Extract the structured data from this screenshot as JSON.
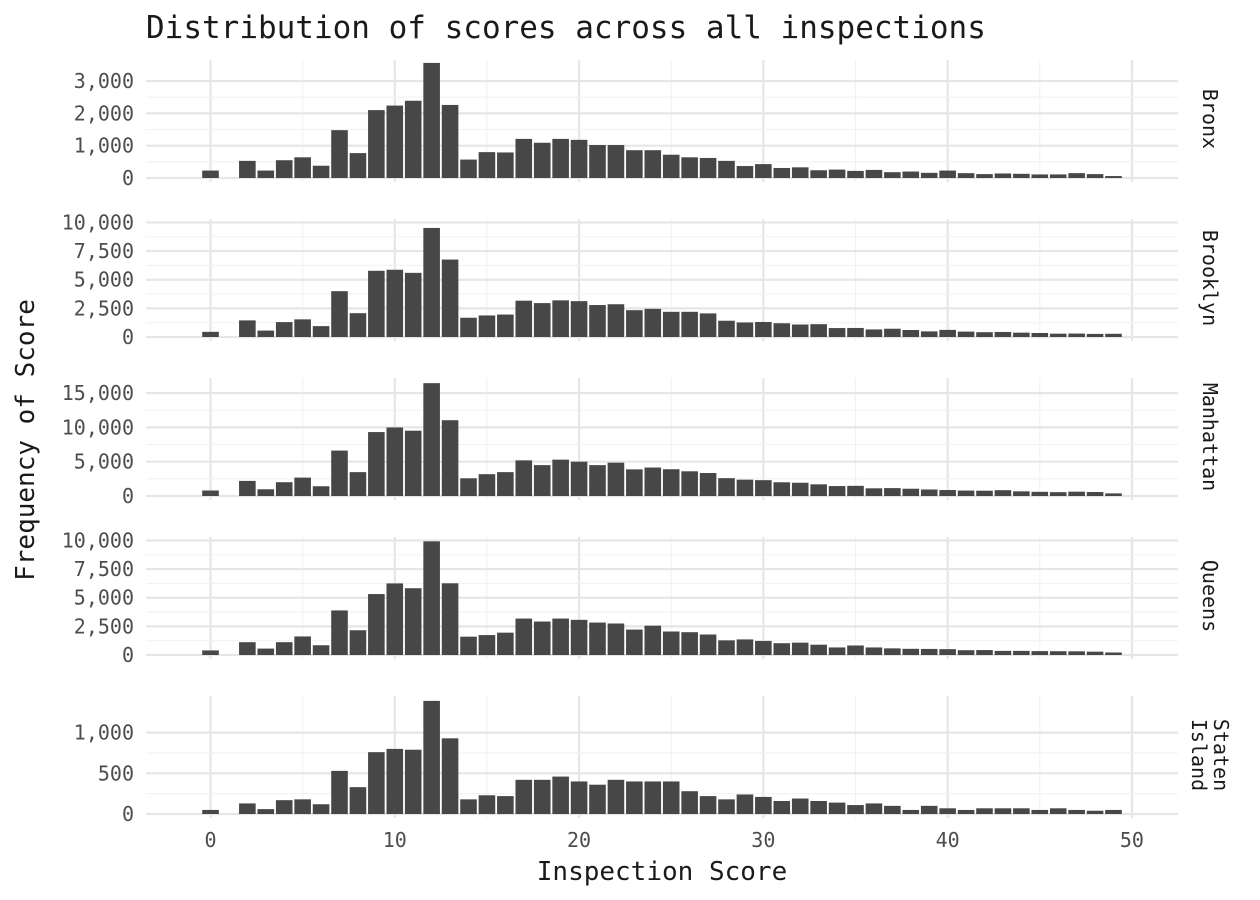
{
  "chart_data": {
    "type": "bar",
    "title": "Distribution of scores across all inspections",
    "xlabel": "Inspection Score",
    "ylabel": "Frequency of Score",
    "x_ticks": [
      0,
      10,
      20,
      30,
      40,
      50
    ],
    "xlim": [
      -3.5,
      52.5
    ],
    "x": [
      0,
      2,
      3,
      4,
      5,
      6,
      7,
      8,
      9,
      10,
      11,
      12,
      13,
      14,
      15,
      16,
      17,
      18,
      19,
      20,
      21,
      22,
      23,
      24,
      25,
      26,
      27,
      28,
      29,
      30,
      31,
      32,
      33,
      34,
      35,
      36,
      37,
      38,
      39,
      40,
      41,
      42,
      43,
      44,
      45,
      46,
      47,
      48,
      49
    ],
    "grid": true,
    "bar_color": "#474747",
    "facets": [
      {
        "name": "Bronx",
        "strip_lines": [
          "Bronx"
        ],
        "y_ticks": [
          0,
          1000,
          2000,
          3000
        ],
        "y_tick_labels": [
          "0",
          "1,000",
          "2,000",
          "3,000"
        ],
        "ylim": [
          0,
          3650
        ],
        "values": [
          230,
          530,
          230,
          550,
          640,
          380,
          1480,
          770,
          2100,
          2240,
          2390,
          3560,
          2260,
          570,
          800,
          790,
          1210,
          1090,
          1210,
          1180,
          1020,
          1020,
          860,
          860,
          720,
          640,
          620,
          530,
          370,
          430,
          310,
          330,
          240,
          260,
          220,
          250,
          180,
          200,
          160,
          230,
          150,
          120,
          140,
          130,
          110,
          110,
          150,
          120,
          60
        ]
      },
      {
        "name": "Brooklyn",
        "strip_lines": [
          "Brooklyn"
        ],
        "y_ticks": [
          0,
          2500,
          5000,
          7500,
          10000
        ],
        "y_tick_labels": [
          "0",
          "2,500",
          "5,000",
          "7,500",
          "10,000"
        ],
        "ylim": [
          0,
          10300
        ],
        "values": [
          450,
          1450,
          560,
          1300,
          1540,
          950,
          4000,
          2080,
          5780,
          5870,
          5600,
          9520,
          6760,
          1680,
          1880,
          1960,
          3170,
          2960,
          3200,
          3130,
          2790,
          2860,
          2340,
          2460,
          2200,
          2200,
          2060,
          1420,
          1270,
          1310,
          1200,
          1090,
          1120,
          780,
          790,
          660,
          720,
          610,
          490,
          620,
          470,
          420,
          440,
          380,
          350,
          290,
          300,
          270,
          280
        ]
      },
      {
        "name": "Manhattan",
        "strip_lines": [
          "Manhattan"
        ],
        "y_ticks": [
          0,
          5000,
          10000,
          15000
        ],
        "y_tick_labels": [
          "0",
          "5,000",
          "10,000",
          "15,000"
        ],
        "ylim": [
          0,
          17200
        ],
        "values": [
          800,
          2200,
          980,
          2010,
          2680,
          1420,
          6620,
          3480,
          9320,
          9990,
          9520,
          16450,
          11050,
          2580,
          3180,
          3480,
          5200,
          4500,
          5300,
          5000,
          4500,
          4860,
          3880,
          4150,
          3900,
          3600,
          3350,
          2600,
          2380,
          2310,
          2000,
          1930,
          1700,
          1450,
          1480,
          1120,
          1150,
          1060,
          950,
          870,
          790,
          770,
          850,
          680,
          610,
          560,
          630,
          580,
          380
        ]
      },
      {
        "name": "Queens",
        "strip_lines": [
          "Queens"
        ],
        "y_ticks": [
          0,
          2500,
          5000,
          7500,
          10000
        ],
        "y_tick_labels": [
          "0",
          "2,500",
          "5,000",
          "7,500",
          "10,000"
        ],
        "ylim": [
          0,
          10300
        ],
        "values": [
          400,
          1120,
          560,
          1120,
          1620,
          850,
          3890,
          2160,
          5320,
          6250,
          5830,
          9920,
          6260,
          1600,
          1740,
          1950,
          3180,
          2920,
          3180,
          3070,
          2830,
          2750,
          2220,
          2560,
          2050,
          1990,
          1790,
          1280,
          1360,
          1230,
          1030,
          1080,
          900,
          660,
          830,
          660,
          580,
          540,
          530,
          510,
          420,
          430,
          360,
          360,
          340,
          330,
          320,
          290,
          220
        ]
      },
      {
        "name": "Staten Island",
        "strip_lines": [
          "Staten",
          "Island"
        ],
        "y_ticks": [
          0,
          500,
          1000
        ],
        "y_tick_labels": [
          "0",
          "500",
          "1,000"
        ],
        "ylim": [
          0,
          1450
        ],
        "values": [
          50,
          130,
          60,
          170,
          180,
          120,
          530,
          330,
          760,
          800,
          790,
          1390,
          930,
          180,
          230,
          220,
          420,
          420,
          460,
          400,
          360,
          420,
          400,
          400,
          400,
          280,
          220,
          180,
          240,
          210,
          160,
          190,
          160,
          140,
          110,
          130,
          100,
          50,
          100,
          70,
          50,
          70,
          70,
          70,
          50,
          70,
          50,
          40,
          50
        ]
      }
    ]
  }
}
